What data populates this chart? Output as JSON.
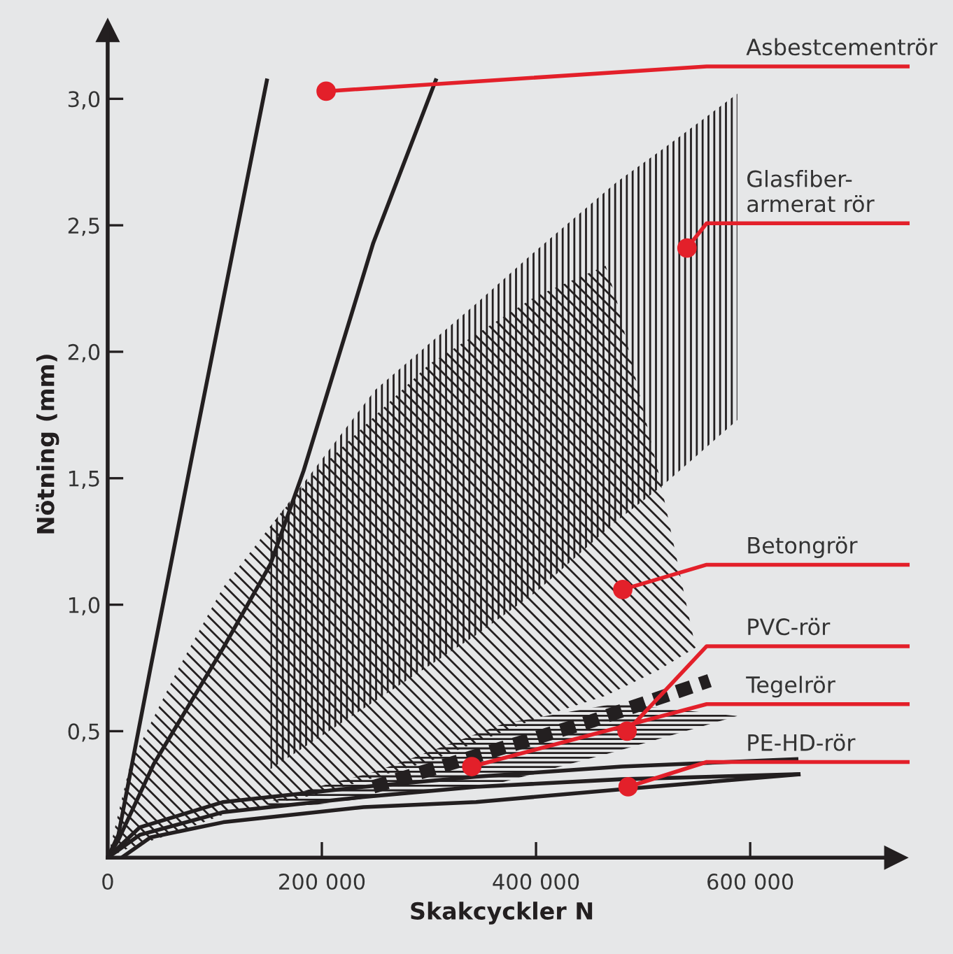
{
  "chart_data": {
    "type": "line",
    "xlabel": "Skakcyckler N",
    "ylabel": "Nötning (mm)",
    "xlim": [
      0,
      736000
    ],
    "ylim": [
      0,
      3.27
    ],
    "xticks": [
      {
        "value": 0,
        "label": "0"
      },
      {
        "value": 200000,
        "label": "200 000"
      },
      {
        "value": 400000,
        "label": "400 000"
      },
      {
        "value": 600000,
        "label": "600 000"
      }
    ],
    "yticks": [
      {
        "value": 0.5,
        "label": "0,5"
      },
      {
        "value": 1.0,
        "label": "1,0"
      },
      {
        "value": 1.5,
        "label": "1,5"
      },
      {
        "value": 2.0,
        "label": "2,0"
      },
      {
        "value": 2.5,
        "label": "2,5"
      },
      {
        "value": 3.0,
        "label": "3,0"
      }
    ],
    "grid": false,
    "series": [
      {
        "type": "area",
        "color": "#231f20",
        "x": [
          152000,
          250000,
          344000,
          400000,
          475000,
          518000,
          588000
        ],
        "values": [
          null,
          null,
          null,
          null,
          null,
          null,
          null
        ],
        "upper": [
          1.31,
          1.85,
          2.19,
          2.4,
          2.67,
          2.8,
          3.02
        ],
        "lower": [
          0.35,
          0.62,
          0.88,
          1.05,
          1.33,
          1.47,
          1.73
        ]
      },
      {
        "type": "area",
        "color": "#231f20",
        "x": [
          0,
          21000,
          65000,
          108000,
          161000,
          196000,
          300000,
          400000,
          465000,
          475000,
          514000,
          549000
        ],
        "values": [
          null,
          null,
          null,
          null,
          null,
          null,
          null,
          null,
          null,
          null,
          null,
          null
        ],
        "upper": [
          0,
          0.37,
          0.74,
          1.07,
          1.36,
          1.53,
          1.95,
          2.22,
          2.34,
          2.21,
          1.53,
          0.83
        ],
        "lower": [
          0,
          0.04,
          0.1,
          0.17,
          0.22,
          0.25,
          0.38,
          0.55,
          0.64,
          0.66,
          0.74,
          0.83
        ]
      },
      {
        "type": "area",
        "color": "#231f20",
        "x": [
          150000,
          196000,
          250000,
          282000,
          370000,
          475000,
          588000
        ],
        "values": [
          null,
          null,
          null,
          null,
          null,
          null,
          null
        ],
        "upper": [
          0.22,
          0.28,
          0.34,
          0.39,
          0.53,
          0.61,
          0.56
        ],
        "lower": [
          0.2,
          0.21,
          0.24,
          0.25,
          0.3,
          0.42,
          0.56
        ]
      },
      {
        "color": "#231f20",
        "x": [
          0,
          10000,
          40000,
          78000,
          149000
        ],
        "values": [
          0,
          0.09,
          0.75,
          1.57,
          3.08
        ]
      },
      {
        "color": "#231f20",
        "x": [
          0,
          10000,
          43000,
          108000,
          152000,
          183000,
          248000,
          307000
        ],
        "values": [
          0,
          0.07,
          0.37,
          0.83,
          1.16,
          1.53,
          2.43,
          3.08
        ]
      },
      {
        "color": "#231f20",
        "x": [
          0,
          30000,
          108000,
          239000,
          344000,
          480000,
          645000
        ],
        "values": [
          0,
          0.12,
          0.22,
          0.28,
          0.32,
          0.36,
          0.39
        ]
      },
      {
        "color": "#231f20",
        "x": [
          0,
          30000,
          108000,
          239000,
          344000,
          480000,
          647000
        ],
        "values": [
          0,
          0.09,
          0.18,
          0.24,
          0.28,
          0.31,
          0.33
        ]
      },
      {
        "color": "#231f20",
        "x": [
          13000,
          40000,
          108000,
          239000,
          344000,
          480000,
          647000
        ],
        "values": [
          0,
          0.08,
          0.14,
          0.2,
          0.22,
          0.27,
          0.33
        ]
      },
      {
        "color": "#231f20",
        "line_style": "dashed",
        "x": [
          248000,
          350000,
          452000,
          562000
        ],
        "values": [
          0.28,
          0.41,
          0.54,
          0.7
        ]
      }
    ],
    "annotations": [
      {
        "text": "Asbestcementrör",
        "x": 204000,
        "y": 3.03
      },
      {
        "text": "Glasfiber-\narmerat rör",
        "x": 541000,
        "y": 2.41
      },
      {
        "text": "Betongrör",
        "x": 481000,
        "y": 1.06
      },
      {
        "text": "Tegelrör",
        "x": 340000,
        "y": 0.36
      },
      {
        "text": "PVC-rör",
        "x": 485000,
        "y": 0.5
      },
      {
        "text": "PE-HD-rör",
        "x": 486000,
        "y": 0.28
      }
    ]
  }
}
